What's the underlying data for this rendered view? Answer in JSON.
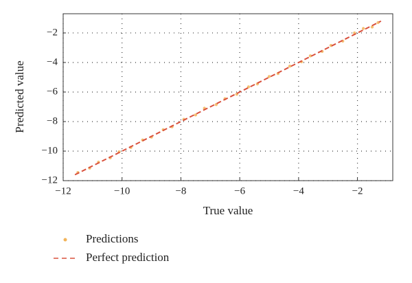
{
  "chart_data": {
    "type": "scatter",
    "x_label": "True value",
    "y_label": "Predicted value",
    "xlim": [
      -12,
      -0.8
    ],
    "ylim": [
      -12,
      -0.7
    ],
    "xticks": [
      {
        "value": -12,
        "label": "−12"
      },
      {
        "value": -10,
        "label": "−10"
      },
      {
        "value": -8,
        "label": "−8"
      },
      {
        "value": -6,
        "label": "−6"
      },
      {
        "value": -4,
        "label": "−4"
      },
      {
        "value": -2,
        "label": "−2"
      }
    ],
    "yticks": [
      {
        "value": -12,
        "label": "−12"
      },
      {
        "value": -10,
        "label": "−10"
      },
      {
        "value": -8,
        "label": "−8"
      },
      {
        "value": -6,
        "label": "−6"
      },
      {
        "value": -4,
        "label": "−4"
      },
      {
        "value": -2,
        "label": "−2"
      }
    ],
    "grid": true,
    "series": [
      {
        "name": "Predictions",
        "color": "#f2b45a",
        "x": [
          -11.5,
          -11.1,
          -10.8,
          -10.4,
          -10.1,
          -9.7,
          -9.3,
          -9.0,
          -8.6,
          -8.3,
          -7.9,
          -7.5,
          -7.2,
          -6.8,
          -6.5,
          -6.1,
          -5.7,
          -5.4,
          -5.0,
          -4.7,
          -4.3,
          -3.9,
          -3.6,
          -3.2,
          -2.9,
          -2.5,
          -2.1,
          -1.8,
          -1.5,
          -1.3
        ],
        "values": [
          -11.45,
          -11.15,
          -10.75,
          -10.45,
          -10.05,
          -9.75,
          -9.25,
          -9.05,
          -8.55,
          -8.35,
          -7.85,
          -7.55,
          -7.1,
          -6.85,
          -6.45,
          -6.15,
          -5.65,
          -5.45,
          -4.95,
          -4.75,
          -4.25,
          -3.95,
          -3.55,
          -3.25,
          -2.85,
          -2.55,
          -2.0,
          -1.7,
          -1.6,
          -1.3
        ]
      },
      {
        "name": "Perfect prediction",
        "color": "#d9503c",
        "dashed": true,
        "x": [
          -11.6,
          -1.2
        ],
        "values": [
          -11.6,
          -1.2
        ]
      }
    ]
  }
}
